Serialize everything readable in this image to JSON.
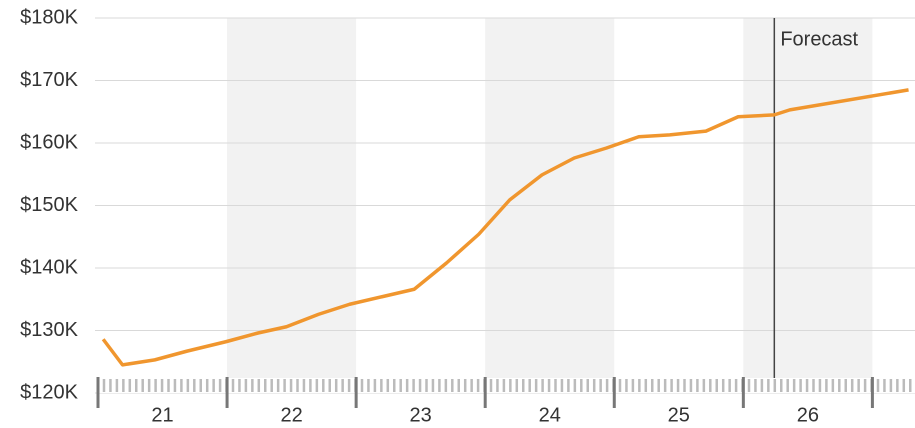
{
  "chart_data": {
    "type": "line",
    "categories": [
      "21",
      "22",
      "23",
      "24",
      "25",
      "26"
    ],
    "shaded": [
      false,
      true,
      false,
      true,
      false,
      true
    ],
    "series": [
      {
        "color": "#f0962e",
        "x": [
          20.54,
          20.69,
          20.94,
          21.19,
          21.49,
          21.74,
          21.96,
          22.21,
          22.45,
          22.7,
          22.95,
          23.2,
          23.45,
          23.69,
          23.94,
          24.19,
          24.44,
          24.69,
          24.93,
          25.21,
          25.46,
          25.74,
          25.86,
          26.78
        ],
        "values": [
          128.6,
          124.5,
          125.3,
          126.7,
          128.2,
          129.6,
          130.6,
          132.6,
          134.2,
          135.4,
          136.6,
          140.8,
          145.4,
          150.9,
          154.9,
          157.6,
          159.2,
          161.0,
          161.3,
          161.9,
          164.2,
          164.5,
          165.3,
          168.5
        ]
      }
    ],
    "annotation": {
      "x": 25.74,
      "label": "Forecast"
    },
    "xlim": [
      20.5,
      26.83
    ],
    "ylim": [
      120,
      180
    ],
    "yticks": [
      {
        "value": 120,
        "label": "$120K"
      },
      {
        "value": 130,
        "label": "$130K"
      },
      {
        "value": 140,
        "label": "$140K"
      },
      {
        "value": 150,
        "label": "$150K"
      },
      {
        "value": 160,
        "label": "$160K"
      },
      {
        "value": 170,
        "label": "$170K"
      },
      {
        "value": 180,
        "label": "$180K"
      }
    ],
    "grid": true
  }
}
